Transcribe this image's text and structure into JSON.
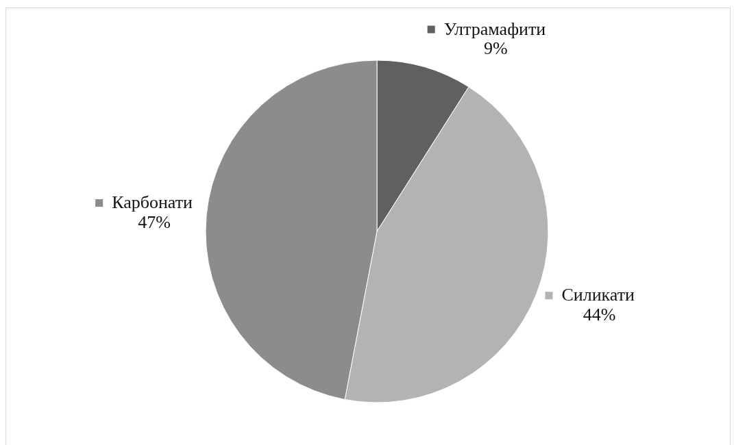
{
  "chart_data": {
    "type": "pie",
    "categories": [
      "Ултрамафити",
      "Силикати",
      "Карбонати"
    ],
    "values": [
      9,
      44,
      47
    ],
    "colors": [
      "#606060",
      "#b3b3b3",
      "#8c8c8c"
    ],
    "value_labels": [
      "9%",
      "44%",
      "47%"
    ],
    "legend": "top"
  }
}
